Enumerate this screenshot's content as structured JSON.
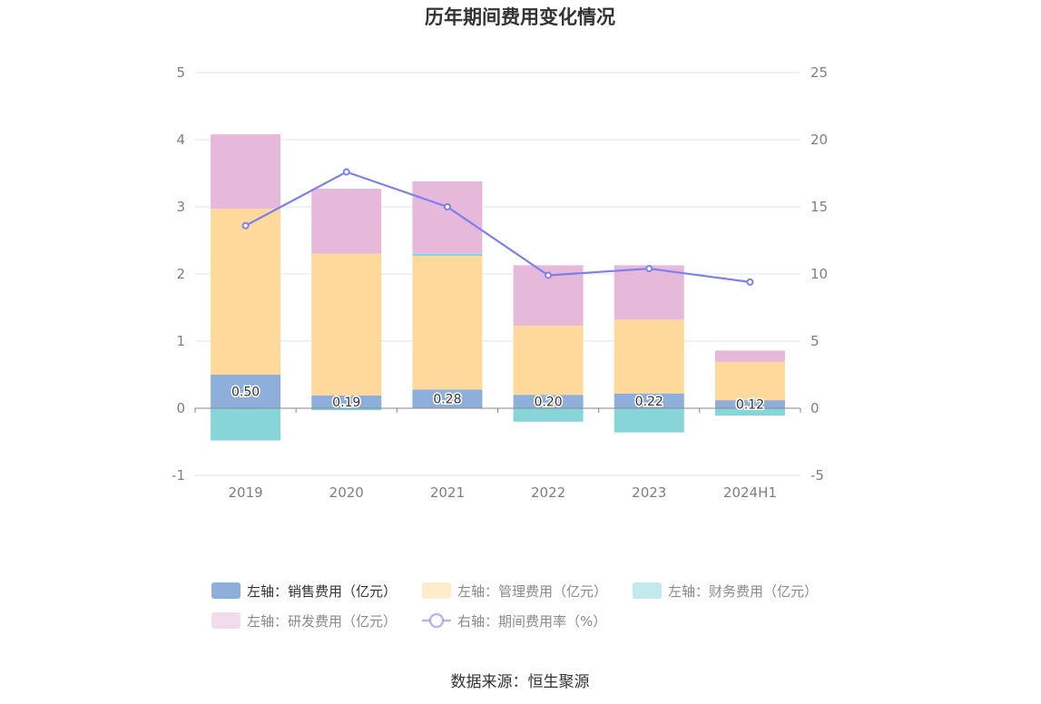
{
  "chart_data": {
    "type": "bar",
    "title": "历年期间费用变化情况",
    "source": "数据来源：恒生聚源",
    "categories": [
      "2019",
      "2020",
      "2021",
      "2022",
      "2023",
      "2024H1"
    ],
    "left_axis": {
      "ylim": [
        -1,
        5
      ],
      "ticks": [
        "5",
        "4",
        "3",
        "2",
        "1",
        "0",
        "-1"
      ]
    },
    "right_axis": {
      "ylim": [
        -5,
        25
      ],
      "ticks": [
        "25",
        "20",
        "15",
        "10",
        "5",
        "0",
        "-5"
      ]
    },
    "series": [
      {
        "name": "左轴：销售费用（亿元）",
        "type": "bar",
        "axis": "left",
        "color": "#8eaedc",
        "values": [
          0.5,
          0.19,
          0.28,
          0.2,
          0.22,
          0.12
        ],
        "labels": [
          "0.50",
          "0.19",
          "0.28",
          "0.20",
          "0.22",
          "0.12"
        ]
      },
      {
        "name": "左轴：管理费用（亿元）",
        "type": "bar",
        "axis": "left",
        "color": "#ffd99c",
        "values": [
          2.47,
          2.11,
          1.99,
          1.03,
          1.1,
          0.57
        ]
      },
      {
        "name": "左轴：财务费用（亿元）",
        "type": "bar",
        "axis": "left",
        "color": "#87d4d9",
        "values": [
          -0.48,
          -0.03,
          0.03,
          -0.2,
          -0.36,
          -0.11
        ]
      },
      {
        "name": "左轴：研发费用（亿元）",
        "type": "bar",
        "axis": "left",
        "color": "#e6b9da",
        "values": [
          1.11,
          0.97,
          1.08,
          0.9,
          0.81,
          0.17
        ]
      },
      {
        "name": "右轴：期间费用率（%）",
        "type": "line",
        "axis": "right",
        "color": "#7b7ff0",
        "values": [
          13.6,
          17.6,
          15.0,
          9.9,
          10.4,
          9.4
        ]
      }
    ]
  }
}
